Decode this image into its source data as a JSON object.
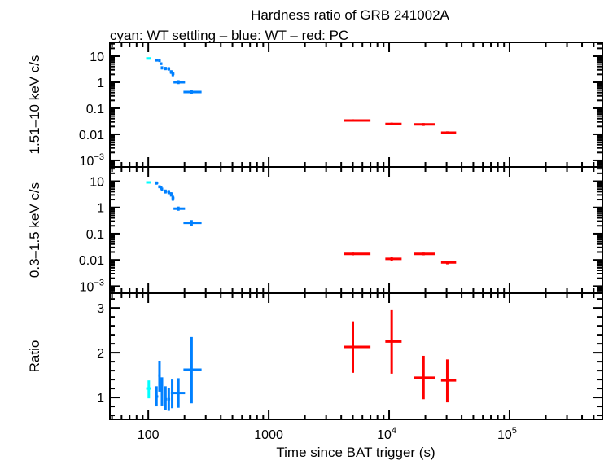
{
  "title": "Hardness ratio of GRB 241002A",
  "subtitle": "cyan: WT settling – blue: WT – red: PC",
  "xlabel": "Time since BAT trigger (s)",
  "x_ticks": [
    {
      "value": 100,
      "label": "100",
      "sup": ""
    },
    {
      "value": 1000,
      "label": "1000",
      "sup": ""
    },
    {
      "value": 10000,
      "label": "10",
      "sup": "4"
    },
    {
      "value": 100000,
      "label": "10",
      "sup": "5"
    }
  ],
  "colors": {
    "WT settling": "#00ffff",
    "WT": "#0080ff",
    "PC": "#ff0000",
    "axis": "#000000"
  },
  "chart_data": [
    {
      "type": "scatter",
      "ylabel": "1.51–10 keV c/s",
      "xscale": "log",
      "yscale": "log",
      "xlim": [
        48,
        590000
      ],
      "ylim": [
        0.00056,
        34
      ],
      "y_ticks": [
        {
          "value": 10,
          "label": "10",
          "sup": ""
        },
        {
          "value": 1,
          "label": "1",
          "sup": ""
        },
        {
          "value": 0.1,
          "label": "0.1",
          "sup": ""
        },
        {
          "value": 0.01,
          "label": "0.01",
          "sup": ""
        },
        {
          "value": 0.001,
          "label": "10",
          "sup": "−3"
        }
      ],
      "series": [
        {
          "name": "WT settling",
          "points": [
            [
              101,
              96,
              106,
              8.2,
              7.4,
              9.0
            ]
          ]
        },
        {
          "name": "WT",
          "points": [
            [
              117,
              113,
              121,
              7.0,
              6.2,
              7.8
            ],
            [
              124,
              121,
              127,
              6.8,
              6.0,
              7.6
            ],
            [
              128,
              126,
              131,
              5.2,
              4.6,
              5.8
            ],
            [
              130,
              128,
              133,
              3.6,
              3.1,
              4.1
            ],
            [
              139,
              135,
              143,
              3.4,
              2.9,
              3.9
            ],
            [
              148,
              144,
              152,
              3.3,
              2.8,
              3.8
            ],
            [
              155,
              151,
              159,
              2.5,
              2.1,
              2.9
            ],
            [
              160,
              156,
              165,
              2.1,
              1.7,
              2.5
            ],
            [
              178,
              162,
              202,
              1.0,
              0.85,
              1.2
            ],
            [
              229,
              196,
              277,
              0.42,
              0.36,
              0.49
            ]
          ]
        },
        {
          "name": "PC",
          "points": [
            [
              5000,
              4200,
              7000,
              0.034,
              0.031,
              0.038
            ],
            [
              10500,
              9300,
              12700,
              0.025,
              0.022,
              0.028
            ],
            [
              19300,
              16000,
              24000,
              0.024,
              0.021,
              0.027
            ],
            [
              30400,
              27000,
              36000,
              0.0115,
              0.01,
              0.013
            ]
          ]
        }
      ]
    },
    {
      "type": "scatter",
      "ylabel": "0.3–1.5 keV c/s",
      "xscale": "log",
      "yscale": "log",
      "xlim": [
        48,
        590000
      ],
      "ylim": [
        0.00054,
        35
      ],
      "y_ticks": [
        {
          "value": 10,
          "label": "10",
          "sup": ""
        },
        {
          "value": 1,
          "label": "1",
          "sup": ""
        },
        {
          "value": 0.1,
          "label": "0.1",
          "sup": ""
        },
        {
          "value": 0.01,
          "label": "0.01",
          "sup": ""
        },
        {
          "value": 0.001,
          "label": "10",
          "sup": "−3"
        }
      ],
      "series": [
        {
          "name": "WT settling",
          "points": [
            [
              101,
              96,
              106,
              9.0,
              8.2,
              9.8
            ]
          ]
        },
        {
          "name": "WT",
          "points": [
            [
              117,
              113,
              121,
              8.6,
              7.4,
              9.8
            ],
            [
              124,
              121,
              127,
              6.2,
              5.4,
              7.0
            ],
            [
              128,
              126,
              131,
              5.6,
              4.8,
              6.4
            ],
            [
              130,
              128,
              133,
              5.0,
              4.3,
              5.7
            ],
            [
              139,
              135,
              143,
              4.1,
              3.4,
              4.8
            ],
            [
              148,
              144,
              152,
              3.9,
              3.2,
              4.6
            ],
            [
              155,
              151,
              159,
              3.2,
              2.6,
              3.8
            ],
            [
              160,
              156,
              165,
              2.3,
              1.8,
              2.8
            ],
            [
              178,
              162,
              202,
              0.9,
              0.75,
              1.08
            ],
            [
              229,
              196,
              277,
              0.26,
              0.2,
              0.33
            ]
          ]
        },
        {
          "name": "PC",
          "points": [
            [
              5000,
              4200,
              7000,
              0.017,
              0.015,
              0.019
            ],
            [
              10500,
              9300,
              12700,
              0.011,
              0.0093,
              0.013
            ],
            [
              19300,
              16000,
              24000,
              0.017,
              0.015,
              0.019
            ],
            [
              30400,
              27000,
              36000,
              0.008,
              0.0068,
              0.0094
            ]
          ]
        }
      ]
    },
    {
      "type": "scatter",
      "ylabel": "Ratio",
      "xscale": "log",
      "yscale": "linear",
      "xlim": [
        48,
        590000
      ],
      "ylim": [
        0.51,
        3.33
      ],
      "y_ticks": [
        {
          "value": 1,
          "label": "1",
          "sup": ""
        },
        {
          "value": 2,
          "label": "2",
          "sup": ""
        },
        {
          "value": 3,
          "label": "3",
          "sup": ""
        }
      ],
      "series": [
        {
          "name": "WT settling",
          "points": [
            [
              101,
              96,
              106,
              1.2,
              0.98,
              1.38
            ]
          ]
        },
        {
          "name": "WT",
          "points": [
            [
              117,
              113,
              121,
              1.02,
              0.8,
              1.25
            ],
            [
              124,
              121,
              127,
              1.49,
              1.13,
              1.82
            ],
            [
              130,
              127,
              133,
              1.13,
              0.82,
              1.45
            ],
            [
              139,
              135,
              143,
              0.96,
              0.71,
              1.25
            ],
            [
              148,
              144,
              152,
              0.96,
              0.7,
              1.22
            ],
            [
              158,
              154,
              163,
              1.1,
              0.76,
              1.4
            ],
            [
              178,
              162,
              202,
              1.1,
              0.77,
              1.43
            ],
            [
              229,
              196,
              277,
              1.62,
              0.87,
              2.35
            ]
          ]
        },
        {
          "name": "PC",
          "points": [
            [
              5000,
              4200,
              7000,
              2.13,
              1.55,
              2.7
            ],
            [
              10500,
              9300,
              12700,
              2.25,
              1.53,
              2.95
            ],
            [
              19300,
              16000,
              24000,
              1.44,
              0.96,
              1.93
            ],
            [
              30400,
              27000,
              36000,
              1.38,
              0.89,
              1.85
            ]
          ]
        }
      ]
    }
  ]
}
